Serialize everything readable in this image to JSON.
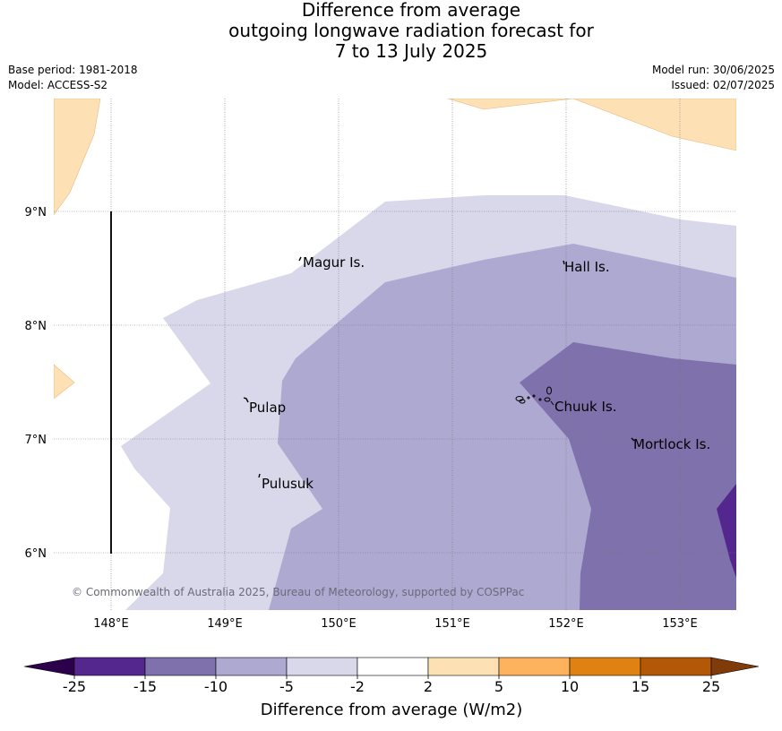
{
  "title": {
    "line1": "Difference from average",
    "line2": "outgoing longwave radiation forecast for",
    "line3": "7 to 13 July 2025"
  },
  "meta_left": {
    "base_period": "Base period: 1981-2018",
    "model": "Model: ACCESS-S2"
  },
  "meta_right": {
    "model_run": "Model run: 30/06/2025",
    "issued": "Issued: 02/07/2025"
  },
  "map": {
    "lon_ticks": [
      "148°E",
      "149°E",
      "150°E",
      "151°E",
      "152°E",
      "153°E"
    ],
    "lat_ticks": [
      "9°N",
      "8°N",
      "7°N",
      "6°N"
    ],
    "place_labels": [
      "Magur Is.",
      "Hall Is.",
      "Pulap",
      "Chuuk Is.",
      "Mortlock Is.",
      "Pulusuk"
    ],
    "copyright": "© Commonwealth of Australia 2025, Bureau of Meteorology, supported by COSPPac"
  },
  "colorbar": {
    "label": "Difference from average (W/m2)",
    "ticks": [
      "-25",
      "-15",
      "-10",
      "-5",
      "-2",
      "2",
      "5",
      "10",
      "15",
      "25"
    ],
    "colors": [
      "#54278f",
      "#7f71ab",
      "#aea9d0",
      "#d8d8ea",
      "#ffffff",
      "#fde1b4",
      "#fdb25e",
      "#e08213",
      "#b35806"
    ],
    "extend_low_color": "#2d004b",
    "extend_high_color": "#7f3b08"
  }
}
